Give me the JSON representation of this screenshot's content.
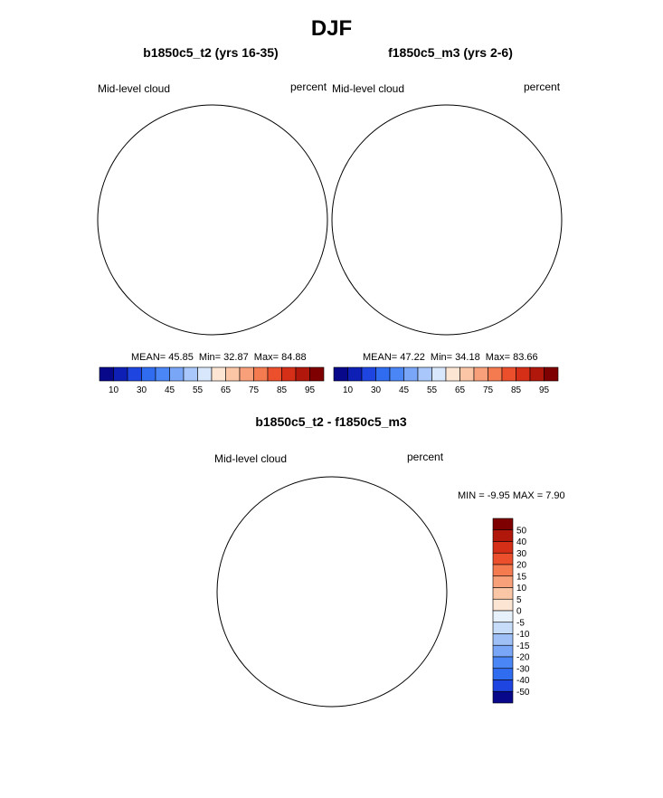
{
  "title": "DJF",
  "colors": {
    "abs_scale": [
      "#08088a",
      "#0d1fb5",
      "#1f45e0",
      "#2f6cf0",
      "#4a86f5",
      "#7aa6f7",
      "#a9c7fa",
      "#d9e7fd",
      "#fde5d3",
      "#fbc6a5",
      "#f7a07a",
      "#f47a50",
      "#ec4f2c",
      "#d62f18",
      "#b2170c",
      "#7f0000"
    ],
    "diff_scale": [
      "#7f0000",
      "#b2170c",
      "#d62f18",
      "#ec4f2c",
      "#f47a50",
      "#f7a07a",
      "#fbc6a5",
      "#fde5d3",
      "#e7f1fc",
      "#c6dcf9",
      "#9fc0f6",
      "#7aa6f7",
      "#4a86f5",
      "#2f6cf0",
      "#1f45e0",
      "#08088a"
    ]
  },
  "panels": [
    {
      "title": "b1850c5_t2 (yrs 16-35)",
      "left_label": "Mid-level cloud",
      "right_label": "percent",
      "stats": {
        "mean": "45.85",
        "min": "32.87",
        "max": "84.88"
      },
      "colorbar_ticks": [
        "10",
        "30",
        "45",
        "55",
        "65",
        "75",
        "85",
        "95"
      ]
    },
    {
      "title": "f1850c5_m3 (yrs 2-6)",
      "left_label": "Mid-level cloud",
      "right_label": "percent",
      "stats": {
        "mean": "47.22",
        "min": "34.18",
        "max": "83.66"
      },
      "colorbar_ticks": [
        "10",
        "30",
        "45",
        "55",
        "65",
        "75",
        "85",
        "95"
      ]
    }
  ],
  "diff_panel": {
    "title": "b1850c5_t2 - f1850c5_m3",
    "left_label": "Mid-level cloud",
    "right_label": "percent",
    "min": "-9.95",
    "max": "7.90",
    "colorbar_ticks": [
      "50",
      "40",
      "30",
      "20",
      "15",
      "10",
      "5",
      "0",
      "-5",
      "-10",
      "-15",
      "-20",
      "-30",
      "-40",
      "-50"
    ]
  }
}
